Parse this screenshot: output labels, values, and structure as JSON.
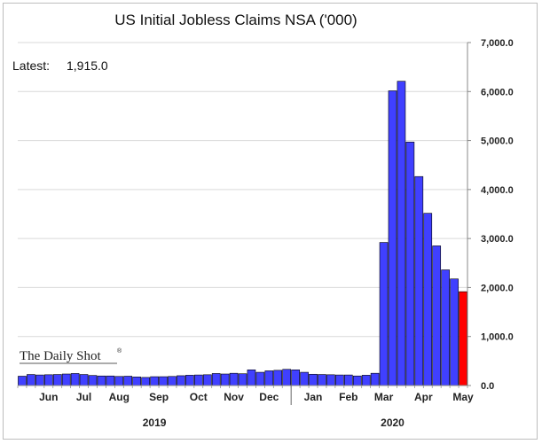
{
  "chart_data": {
    "type": "bar",
    "title": "US Initial Jobless Claims NSA ('000)",
    "annotation": {
      "label": "Latest:",
      "value": "1,915.0"
    },
    "brand": "The Daily Shot",
    "brand_mark": "®",
    "ylim": [
      0,
      7000
    ],
    "yticks": [
      "7,000.0",
      "6,000.0",
      "5,000.0",
      "4,000.0",
      "3,000.0",
      "2,000.0",
      "1,000.0",
      "0.0"
    ],
    "ytick_values": [
      7000,
      6000,
      5000,
      4000,
      3000,
      2000,
      1000,
      0
    ],
    "month_labels": [
      "Jun",
      "Jul",
      "Aug",
      "Sep",
      "Oct",
      "Nov",
      "Dec",
      "Jan",
      "Feb",
      "Mar",
      "Apr",
      "May"
    ],
    "month_label_week_index": [
      3,
      7,
      11,
      15.5,
      20,
      24,
      28,
      33,
      37,
      41,
      45.5,
      50
    ],
    "years": [
      {
        "label": "2019",
        "center_week_index": 15
      },
      {
        "label": "2020",
        "center_week_index": 42
      }
    ],
    "year_divider_week_index": 31,
    "grid": true,
    "colors": {
      "bars": "#4040ff",
      "latest_bar": "#ff0000",
      "bar_edge": "#000000",
      "grid": "#d9d9d9"
    },
    "values": [
      190,
      225,
      215,
      220,
      225,
      235,
      245,
      225,
      205,
      195,
      195,
      185,
      190,
      175,
      165,
      180,
      180,
      185,
      200,
      210,
      215,
      220,
      245,
      235,
      250,
      240,
      320,
      270,
      300,
      310,
      330,
      320,
      270,
      230,
      225,
      220,
      215,
      215,
      195,
      210,
      250,
      2920,
      6015,
      6210,
      4970,
      4265,
      3515,
      2850,
      2360,
      2175,
      1915
    ]
  }
}
